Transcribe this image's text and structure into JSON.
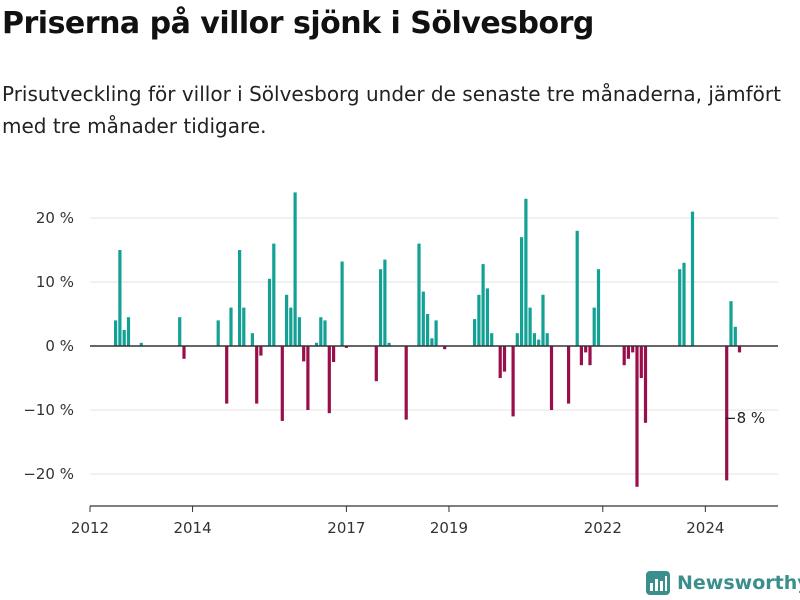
{
  "title": "Priserna på villor sjönk i Sölvesborg",
  "subtitle": "Prisutveckling för villor i Sölvesborg under de senaste tre månaderna, jämfört med tre månader tidigare.",
  "brand": {
    "name": "Newsworthy",
    "icon": "newsworthy-logo-icon"
  },
  "colors": {
    "positive": "#12a194",
    "negative": "#990f4b",
    "axis": "#333333",
    "grid": "#e3e3e3"
  },
  "chart_data": {
    "type": "bar",
    "ylim": [
      -25,
      25
    ],
    "xlim": [
      "2012-01",
      "2025-06"
    ],
    "yticks": [
      20,
      10,
      0,
      -10,
      -20
    ],
    "ytick_labels": [
      "20 %",
      "10 %",
      "0 %",
      "−10 %",
      "−20 %"
    ],
    "xticks": [
      "2012-01",
      "2014-01",
      "2017-01",
      "2019-01",
      "2022-01",
      "2024-01"
    ],
    "xtick_labels": [
      "2012",
      "2014",
      "2017",
      "2019",
      "2022",
      "2024"
    ],
    "annotation": "−8 %",
    "grid": true,
    "series": [
      {
        "x": [
          "2012-07",
          "2012-08",
          "2012-09",
          "2012-10",
          "2013-01",
          "2013-10",
          "2013-11",
          "2014-07",
          "2014-09",
          "2014-10",
          "2014-12",
          "2015-01",
          "2015-03",
          "2015-04",
          "2015-05",
          "2015-07",
          "2015-08",
          "2015-10",
          "2015-11",
          "2015-12",
          "2016-01",
          "2016-02",
          "2016-03",
          "2016-04",
          "2016-06",
          "2016-07",
          "2016-08",
          "2016-09",
          "2016-10",
          "2016-12",
          "2017-01",
          "2017-08",
          "2017-09",
          "2017-10",
          "2017-11",
          "2018-03",
          "2018-06",
          "2018-07",
          "2018-08",
          "2018-09",
          "2018-10",
          "2018-12",
          "2019-07",
          "2019-08",
          "2019-09",
          "2019-10",
          "2019-11",
          "2020-01",
          "2020-02",
          "2020-04",
          "2020-05",
          "2020-06",
          "2020-07",
          "2020-08",
          "2020-09",
          "2020-10",
          "2020-11",
          "2020-12",
          "2021-01",
          "2021-05",
          "2021-07",
          "2021-08",
          "2021-09",
          "2021-10",
          "2021-11",
          "2021-12",
          "2022-06",
          "2022-07",
          "2022-08",
          "2022-09",
          "2022-10",
          "2022-11",
          "2023-07",
          "2023-08",
          "2023-10",
          "2024-06",
          "2024-07",
          "2024-08",
          "2024-09"
        ],
        "values": [
          4,
          15,
          2.5,
          4.5,
          0.5,
          4.5,
          -2,
          4,
          -9,
          6,
          15,
          6,
          2,
          -9,
          -1.5,
          10.5,
          16,
          -11.7,
          8,
          6,
          24,
          4.5,
          -2.4,
          -10,
          0.5,
          4.5,
          4,
          -10.5,
          -2.5,
          13.2,
          -0.3,
          -5.5,
          12,
          13.5,
          0.5,
          -11.5,
          16,
          8.5,
          5,
          1.2,
          4,
          -0.5,
          4.2,
          8,
          12.8,
          9,
          2,
          -5,
          -4,
          -11,
          2,
          17,
          23,
          6,
          2,
          1,
          8,
          2,
          -10,
          -9,
          18,
          -3,
          -1,
          -3,
          6,
          12,
          -3,
          -2,
          -1,
          -22,
          -5,
          -12,
          12,
          13,
          21,
          -21,
          7,
          3,
          -1
        ]
      }
    ]
  }
}
